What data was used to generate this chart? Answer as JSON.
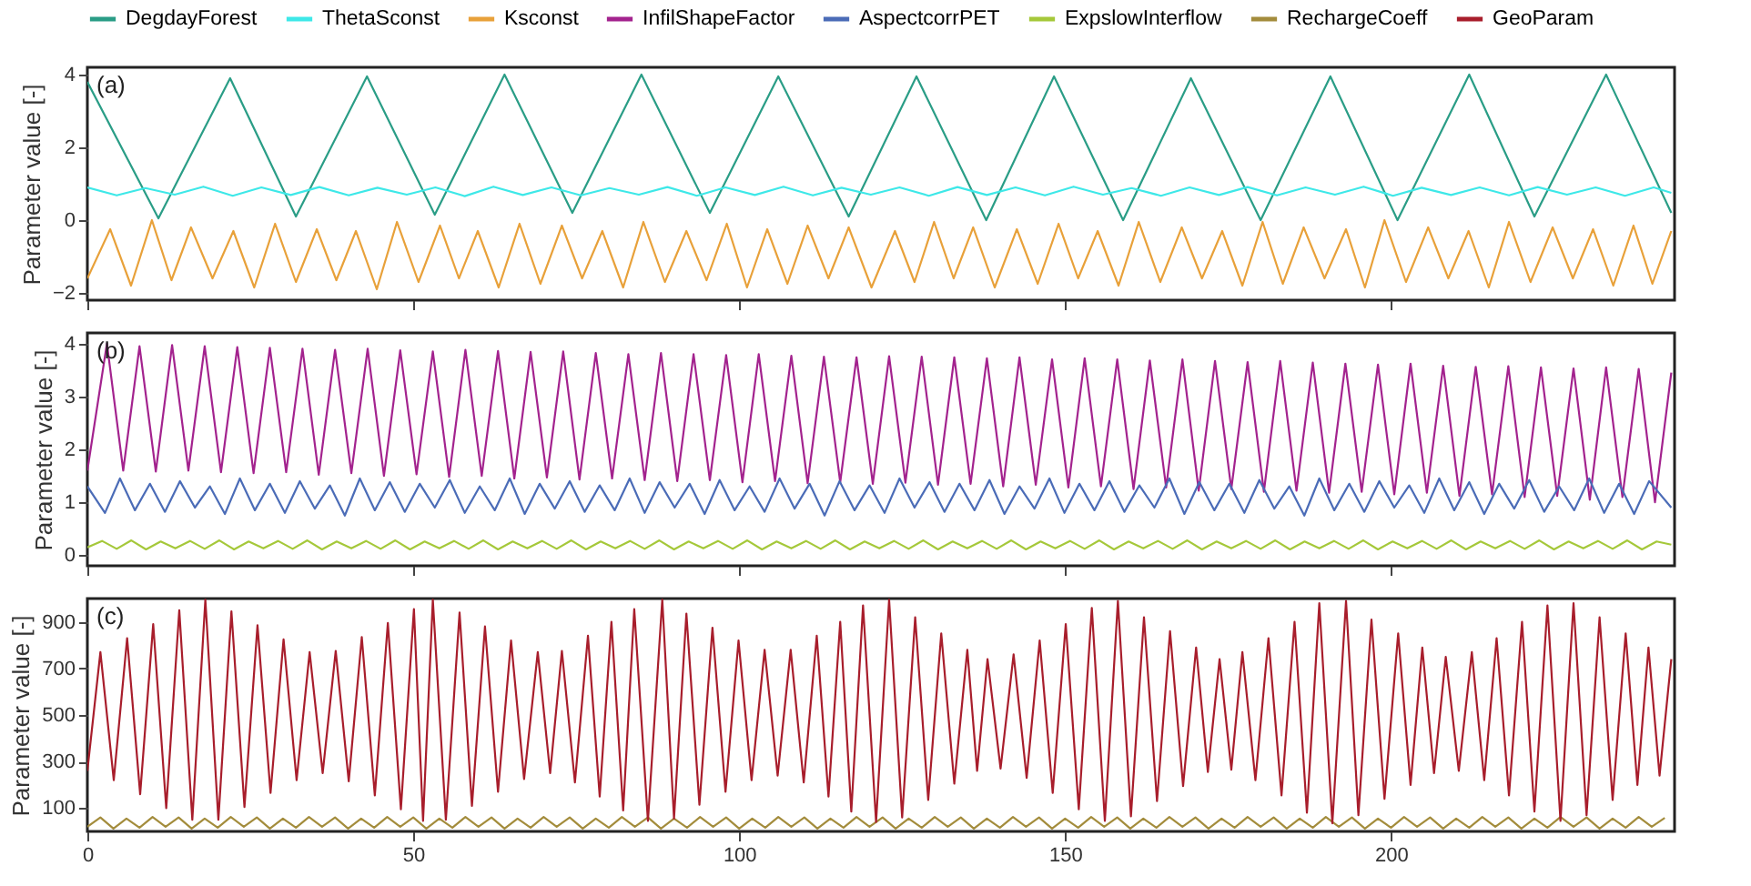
{
  "chart_data": [
    {
      "type": "line",
      "ylabel": "Parameter value [-]",
      "annotations": [
        "(a)"
      ],
      "xlim": [
        0,
        243.5
      ],
      "xticks": [
        0,
        50,
        100,
        150,
        200
      ],
      "ylim": [
        -2.2,
        4.2
      ],
      "yticks": [
        -2,
        0,
        2,
        4
      ],
      "tick_labels": "y",
      "legend": "top",
      "series": [
        {
          "name": "DegdayForest",
          "color": "#2a9d86",
          "x": [
            0,
            10.9,
            21.9,
            32,
            42.9,
            53.3,
            64,
            74.4,
            85,
            95.5,
            106,
            116.8,
            127.2,
            137.9,
            148.3,
            158.9,
            169.3,
            180,
            190.7,
            201,
            212,
            222,
            233,
            243
          ],
          "values": [
            3.8,
            0.05,
            3.9,
            0.1,
            3.95,
            0.15,
            4,
            0.2,
            4,
            0.2,
            3.95,
            0.1,
            3.95,
            0,
            3.95,
            0,
            3.9,
            0,
            3.95,
            0,
            4,
            0.1,
            4,
            0.2
          ]
        },
        {
          "name": "ThetaSconst",
          "color": "#3ee8e8",
          "x": [
            0,
            4.5,
            8.9,
            13.4,
            17.8,
            22.3,
            26.7,
            31.2,
            35.6,
            40.1,
            44.5,
            49,
            53.4,
            57.9,
            62.3,
            66.8,
            71.2,
            75.7,
            80.1,
            84.6,
            89,
            93.5,
            97.9,
            102.4,
            106.8,
            111.3,
            115.7,
            120.2,
            124.6,
            129.1,
            133.5,
            138,
            142.4,
            146.9,
            151.3,
            155.8,
            160.2,
            164.7,
            169.1,
            173.6,
            178,
            182.5,
            186.9,
            191.4,
            195.8,
            200.3,
            204.7,
            209.2,
            213.6,
            218.1,
            222.5,
            227,
            231.4,
            235.9,
            240.3,
            243
          ],
          "values": [
            0.9,
            0.68,
            0.88,
            0.7,
            0.92,
            0.67,
            0.9,
            0.69,
            0.91,
            0.68,
            0.89,
            0.7,
            0.9,
            0.66,
            0.92,
            0.69,
            0.9,
            0.68,
            0.88,
            0.7,
            0.91,
            0.67,
            0.9,
            0.69,
            0.92,
            0.68,
            0.89,
            0.7,
            0.9,
            0.67,
            0.91,
            0.69,
            0.9,
            0.68,
            0.92,
            0.7,
            0.88,
            0.67,
            0.9,
            0.69,
            0.91,
            0.68,
            0.9,
            0.7,
            0.92,
            0.67,
            0.89,
            0.69,
            0.9,
            0.68,
            0.91,
            0.7,
            0.9,
            0.67,
            0.9,
            0.75
          ]
        },
        {
          "name": "Ksconst",
          "color": "#e8a13a",
          "x": [
            0,
            3.5,
            6.7,
            9.9,
            12.9,
            15.9,
            19.2,
            22.4,
            25.6,
            28.8,
            32,
            35.2,
            38.2,
            41.2,
            44.4,
            47.5,
            50.8,
            54.1,
            57,
            59.9,
            63.1,
            66.3,
            69.5,
            72.8,
            75.9,
            79,
            82.2,
            85.3,
            88.6,
            91.9,
            95,
            98.1,
            101.2,
            104.3,
            107.4,
            110.5,
            113.7,
            116.8,
            120.3,
            123.9,
            126.9,
            129.9,
            132.9,
            135.9,
            139.2,
            142.6,
            145.8,
            149,
            152,
            155,
            158.2,
            161.3,
            164.6,
            167.9,
            171,
            174.1,
            177.2,
            180.3,
            183.4,
            186.6,
            189.8,
            193.1,
            196,
            199,
            202.3,
            205.7,
            208.8,
            211.9,
            215,
            218.1,
            221.4,
            224.8,
            227.9,
            231,
            234.1,
            237.2,
            240.1,
            243
          ],
          "values": [
            -1.6,
            -0.25,
            -1.8,
            0,
            -1.65,
            -0.2,
            -1.6,
            -0.3,
            -1.85,
            -0.1,
            -1.7,
            -0.25,
            -1.65,
            -0.3,
            -1.9,
            -0.05,
            -1.7,
            -0.15,
            -1.6,
            -0.3,
            -1.85,
            -0.1,
            -1.75,
            -0.15,
            -1.6,
            -0.3,
            -1.85,
            -0.05,
            -1.7,
            -0.3,
            -1.65,
            -0.1,
            -1.85,
            -0.25,
            -1.75,
            -0.15,
            -1.6,
            -0.2,
            -1.85,
            -0.3,
            -1.7,
            -0.05,
            -1.6,
            -0.2,
            -1.85,
            -0.25,
            -1.75,
            -0.1,
            -1.6,
            -0.3,
            -1.8,
            -0.05,
            -1.7,
            -0.2,
            -1.6,
            -0.3,
            -1.8,
            -0.05,
            -1.75,
            -0.2,
            -1.6,
            -0.25,
            -1.85,
            0,
            -1.7,
            -0.2,
            -1.6,
            -0.3,
            -1.85,
            -0.05,
            -1.7,
            -0.2,
            -1.6,
            -0.25,
            -1.8,
            -0.15,
            -1.75,
            -0.3
          ]
        }
      ]
    },
    {
      "type": "line",
      "ylabel": "Parameter value [-]",
      "annotations": [
        "(b)"
      ],
      "xlim": [
        0,
        243.5
      ],
      "xticks": [
        0,
        50,
        100,
        150,
        200
      ],
      "ylim": [
        -0.2,
        4.2
      ],
      "yticks": [
        0,
        1,
        2,
        3,
        4
      ],
      "tick_labels": "y",
      "legend": "top",
      "series": [
        {
          "name": "InfilShapeFactor",
          "color": "#a3238e",
          "x": [
            0,
            3,
            5.5,
            8,
            10.5,
            13,
            15.5,
            18,
            20.5,
            23,
            25.5,
            28,
            30.5,
            33,
            35.5,
            38,
            40.5,
            43,
            45.5,
            48,
            50.5,
            53,
            55.5,
            58,
            60.5,
            63,
            65.5,
            68,
            70.5,
            73,
            75.5,
            78,
            80.5,
            83,
            85.5,
            88,
            90.5,
            93,
            95.5,
            98,
            100.5,
            103,
            105.5,
            108,
            110.5,
            113,
            115.5,
            118,
            120.5,
            123,
            125.5,
            128,
            130.5,
            133,
            135.5,
            138,
            140.5,
            143,
            145.5,
            148,
            150.5,
            153,
            155.5,
            158,
            160.5,
            163,
            165.5,
            168,
            170.5,
            173,
            175.5,
            178,
            180.5,
            183,
            185.5,
            188,
            190.5,
            193,
            195.5,
            198,
            200.5,
            203,
            205.5,
            208,
            210.5,
            213,
            215.5,
            218,
            220.5,
            223,
            225.5,
            228,
            230.5,
            233,
            235.5,
            238,
            240.5,
            243
          ],
          "values": [
            1.6,
            4.0,
            1.6,
            3.95,
            1.58,
            3.97,
            1.6,
            3.95,
            1.57,
            3.93,
            1.55,
            3.92,
            1.57,
            3.9,
            1.52,
            3.88,
            1.55,
            3.9,
            1.5,
            3.87,
            1.53,
            3.85,
            1.48,
            3.88,
            1.5,
            3.86,
            1.45,
            3.84,
            1.47,
            3.85,
            1.43,
            3.82,
            1.45,
            3.8,
            1.42,
            3.82,
            1.4,
            3.8,
            1.42,
            3.78,
            1.38,
            3.8,
            1.4,
            3.77,
            1.36,
            3.75,
            1.38,
            3.74,
            1.35,
            3.76,
            1.37,
            3.75,
            1.33,
            3.74,
            1.35,
            3.72,
            1.3,
            3.74,
            1.33,
            3.7,
            1.28,
            3.72,
            1.3,
            3.7,
            1.25,
            3.68,
            1.28,
            3.7,
            1.22,
            3.67,
            1.25,
            3.65,
            1.2,
            3.67,
            1.22,
            3.64,
            1.18,
            3.62,
            1.2,
            3.6,
            1.15,
            3.62,
            1.18,
            3.58,
            1.12,
            3.56,
            1.15,
            3.57,
            1.1,
            3.55,
            1.12,
            3.53,
            1.05,
            3.55,
            1.1,
            3.52,
            1.0,
            3.45
          ]
        },
        {
          "name": "AspectcorrPET",
          "color": "#4b6cb7",
          "x": [
            0,
            2.7,
            5,
            7.3,
            9.6,
            11.9,
            14.2,
            16.5,
            18.8,
            21.1,
            23.4,
            25.7,
            28,
            30.3,
            32.6,
            34.9,
            37.2,
            39.5,
            41.8,
            44.1,
            46.4,
            48.7,
            51,
            53.3,
            55.6,
            57.9,
            60.2,
            62.5,
            64.8,
            67.1,
            69.4,
            71.7,
            74,
            76.3,
            78.6,
            80.9,
            83.2,
            85.5,
            87.8,
            90.1,
            92.4,
            94.7,
            97,
            99.3,
            101.6,
            103.9,
            106.2,
            108.5,
            110.8,
            113.1,
            115.4,
            117.7,
            120,
            122.3,
            124.6,
            126.9,
            129.2,
            131.5,
            133.8,
            136.1,
            138.4,
            140.7,
            143,
            145.3,
            147.6,
            149.9,
            152.2,
            154.5,
            156.8,
            159.1,
            161.4,
            163.7,
            166,
            168.3,
            170.6,
            172.9,
            175.2,
            177.5,
            179.8,
            182.1,
            184.4,
            186.7,
            189,
            191.3,
            193.6,
            195.9,
            198.2,
            200.5,
            202.8,
            205.1,
            207.4,
            209.7,
            212,
            214.3,
            216.6,
            218.9,
            221.2,
            223.5,
            225.8,
            228.1,
            230.4,
            232.7,
            235,
            237.3,
            239.6,
            243
          ],
          "values": [
            1.3,
            0.8,
            1.45,
            0.85,
            1.35,
            0.82,
            1.4,
            0.9,
            1.3,
            0.78,
            1.45,
            0.85,
            1.35,
            0.8,
            1.4,
            0.88,
            1.32,
            0.75,
            1.45,
            0.85,
            1.38,
            0.82,
            1.35,
            0.9,
            1.42,
            0.8,
            1.3,
            0.85,
            1.45,
            0.78,
            1.35,
            0.88,
            1.4,
            0.82,
            1.32,
            0.85,
            1.45,
            0.8,
            1.38,
            0.9,
            1.35,
            0.78,
            1.42,
            0.85,
            1.3,
            0.82,
            1.45,
            0.88,
            1.35,
            0.75,
            1.4,
            0.85,
            1.32,
            0.8,
            1.45,
            0.9,
            1.38,
            0.82,
            1.35,
            0.85,
            1.42,
            0.78,
            1.3,
            0.88,
            1.45,
            0.8,
            1.35,
            0.85,
            1.4,
            0.82,
            1.32,
            0.9,
            1.45,
            0.78,
            1.38,
            0.85,
            1.35,
            0.8,
            1.42,
            0.88,
            1.3,
            0.75,
            1.45,
            0.85,
            1.35,
            0.82,
            1.4,
            0.9,
            1.32,
            0.8,
            1.45,
            0.85,
            1.38,
            0.78,
            1.35,
            0.88,
            1.42,
            0.82,
            1.3,
            0.85,
            1.45,
            0.8,
            1.35,
            0.78,
            1.4,
            0.9
          ]
        },
        {
          "name": "ExpslowInterflow",
          "color": "#a5c83a",
          "x": [
            0,
            2.25,
            4.5,
            6.75,
            9,
            11.25,
            13.5,
            15.75,
            18,
            20.25,
            22.5,
            24.75,
            27,
            29.25,
            31.5,
            33.75,
            36,
            38.25,
            40.5,
            42.75,
            45,
            47.25,
            49.5,
            51.75,
            54,
            56.25,
            58.5,
            60.75,
            63,
            65.25,
            67.5,
            69.75,
            72,
            74.25,
            76.5,
            78.75,
            81,
            83.25,
            85.5,
            87.75,
            90,
            92.25,
            94.5,
            96.75,
            99,
            101.25,
            103.5,
            105.75,
            108,
            110.25,
            112.5,
            114.75,
            117,
            119.25,
            121.5,
            123.75,
            126,
            128.25,
            130.5,
            132.75,
            135,
            137.25,
            139.5,
            141.75,
            144,
            146.25,
            148.5,
            150.75,
            153,
            155.25,
            157.5,
            159.75,
            162,
            164.25,
            166.5,
            168.75,
            171,
            173.25,
            175.5,
            177.75,
            180,
            182.25,
            184.5,
            186.75,
            189,
            191.25,
            193.5,
            195.75,
            198,
            200.25,
            202.5,
            204.75,
            207,
            209.25,
            211.5,
            213.75,
            216,
            218.25,
            220.5,
            222.75,
            225,
            227.25,
            229.5,
            231.75,
            234,
            236.25,
            238.5,
            240.75,
            243
          ],
          "values": [
            0.15,
            0.27,
            0.12,
            0.28,
            0.11,
            0.26,
            0.13,
            0.27,
            0.12,
            0.28,
            0.11,
            0.26,
            0.13,
            0.27,
            0.12,
            0.28,
            0.11,
            0.26,
            0.13,
            0.27,
            0.12,
            0.28,
            0.11,
            0.26,
            0.13,
            0.27,
            0.12,
            0.28,
            0.11,
            0.26,
            0.13,
            0.27,
            0.12,
            0.28,
            0.11,
            0.26,
            0.13,
            0.27,
            0.12,
            0.28,
            0.11,
            0.26,
            0.13,
            0.27,
            0.12,
            0.28,
            0.11,
            0.26,
            0.13,
            0.27,
            0.12,
            0.28,
            0.11,
            0.26,
            0.13,
            0.27,
            0.12,
            0.28,
            0.11,
            0.26,
            0.13,
            0.27,
            0.12,
            0.28,
            0.11,
            0.26,
            0.13,
            0.27,
            0.12,
            0.28,
            0.11,
            0.26,
            0.13,
            0.27,
            0.12,
            0.28,
            0.11,
            0.26,
            0.13,
            0.27,
            0.12,
            0.28,
            0.11,
            0.26,
            0.13,
            0.27,
            0.12,
            0.28,
            0.11,
            0.26,
            0.13,
            0.27,
            0.12,
            0.28,
            0.11,
            0.26,
            0.13,
            0.27,
            0.12,
            0.28,
            0.11,
            0.26,
            0.13,
            0.27,
            0.12,
            0.28,
            0.11,
            0.26,
            0.2
          ]
        }
      ]
    },
    {
      "type": "line",
      "ylabel": "Parameter value [-]",
      "annotations": [
        "(c)"
      ],
      "xlim": [
        0,
        243.5
      ],
      "xticks": [
        0,
        50,
        100,
        150,
        200
      ],
      "ylim": [
        0,
        1000
      ],
      "yticks": [
        100,
        300,
        500,
        700,
        900
      ],
      "legend": "top",
      "series": [
        {
          "name": "RechargeCoeff",
          "color": "#a38c3c",
          "x": [
            0,
            2,
            4,
            6,
            8,
            10,
            12,
            14,
            16,
            18,
            20,
            22,
            24,
            26,
            28,
            30,
            32,
            34,
            36,
            38,
            40,
            42,
            44,
            46,
            48,
            50,
            52,
            54,
            56,
            58,
            60,
            62,
            64,
            66,
            68,
            70,
            72,
            74,
            76,
            78,
            80,
            82,
            84,
            86,
            88,
            90,
            92,
            94,
            96,
            98,
            100,
            102,
            104,
            106,
            108,
            110,
            112,
            114,
            116,
            118,
            120,
            122,
            124,
            126,
            128,
            130,
            132,
            134,
            136,
            138,
            140,
            142,
            144,
            146,
            148,
            150,
            152,
            154,
            156,
            158,
            160,
            162,
            164,
            166,
            168,
            170,
            172,
            174,
            176,
            178,
            180,
            182,
            184,
            186,
            188,
            190,
            192,
            194,
            196,
            198,
            200,
            202,
            204,
            206,
            208,
            210,
            212,
            214,
            216,
            218,
            220,
            222,
            224,
            226,
            228,
            230,
            232,
            234,
            236,
            238,
            240,
            242
          ],
          "values": [
            20,
            60,
            12,
            55,
            16,
            62,
            20,
            60,
            12,
            55,
            16,
            62,
            20,
            60,
            12,
            55,
            16,
            62,
            20,
            60,
            12,
            55,
            16,
            62,
            20,
            60,
            12,
            55,
            16,
            62,
            20,
            60,
            12,
            55,
            16,
            62,
            20,
            60,
            12,
            55,
            16,
            62,
            20,
            60,
            12,
            55,
            16,
            62,
            20,
            60,
            12,
            55,
            16,
            62,
            20,
            60,
            12,
            55,
            16,
            62,
            20,
            60,
            12,
            55,
            16,
            62,
            20,
            60,
            12,
            55,
            16,
            62,
            20,
            60,
            12,
            55,
            16,
            62,
            20,
            60,
            12,
            55,
            16,
            62,
            20,
            60,
            12,
            55,
            16,
            62,
            20,
            60,
            12,
            55,
            16,
            62,
            20,
            60,
            12,
            55,
            16,
            62,
            20,
            60,
            12,
            55,
            16,
            62,
            20,
            60,
            12,
            55,
            16,
            62,
            20,
            60,
            12,
            55,
            16,
            62,
            20,
            58
          ]
        },
        {
          "name": "GeoParam",
          "color": "#a81e2c",
          "x": [
            0,
            2.0,
            4.05,
            6.1,
            8.1,
            10.1,
            12.1,
            14.1,
            16.1,
            18.1,
            20.1,
            22.1,
            24.1,
            26.1,
            28.1,
            30.1,
            32.1,
            34.1,
            36.1,
            38.1,
            40.1,
            42.1,
            44.1,
            46.1,
            48.1,
            50.1,
            51.5,
            53,
            55,
            57.1,
            59,
            61,
            63,
            65,
            67,
            69.1,
            71,
            72.8,
            74.8,
            76.8,
            78.6,
            80.4,
            82.2,
            83.9,
            86,
            88.2,
            90,
            91.9,
            93.9,
            95.9,
            97.9,
            99.9,
            101.9,
            103.9,
            105.9,
            107.9,
            109.9,
            111.9,
            113.7,
            115.5,
            117.2,
            119,
            121,
            123,
            125,
            127,
            129,
            131,
            133,
            135,
            136.5,
            138.1,
            140.1,
            142.1,
            144.1,
            146.1,
            148.1,
            150.1,
            152.1,
            154.1,
            156.1,
            158.1,
            160.1,
            162.1,
            164.1,
            166.1,
            168.1,
            170.1,
            171.9,
            173.7,
            175.5,
            177.2,
            179.2,
            181.2,
            183.2,
            185.2,
            187.1,
            189,
            191,
            193.1,
            195,
            197,
            199,
            201.1,
            203,
            204.8,
            206.6,
            208.4,
            210.4,
            212.4,
            214.3,
            216.2,
            218.1,
            220.1,
            222,
            224,
            226,
            228,
            230,
            232,
            234,
            236,
            237.8,
            239.5,
            241.2,
            243
          ],
          "values": [
            260,
            770,
            220,
            830,
            160,
            890,
            100,
            950,
            50,
            995,
            50,
            945,
            105,
            885,
            165,
            825,
            220,
            770,
            250,
            775,
            215,
            835,
            155,
            895,
            95,
            955,
            45,
            995,
            50,
            940,
            110,
            880,
            170,
            820,
            225,
            770,
            250,
            775,
            210,
            840,
            150,
            900,
            90,
            955,
            45,
            995,
            55,
            935,
            115,
            875,
            170,
            820,
            220,
            780,
            240,
            780,
            210,
            840,
            150,
            900,
            85,
            970,
            40,
            995,
            60,
            920,
            135,
            850,
            205,
            780,
            260,
            740,
            270,
            760,
            230,
            820,
            165,
            890,
            95,
            960,
            45,
            990,
            65,
            920,
            130,
            860,
            195,
            790,
            255,
            740,
            265,
            770,
            220,
            830,
            155,
            900,
            80,
            980,
            35,
            990,
            70,
            910,
            140,
            850,
            200,
            790,
            250,
            750,
            260,
            770,
            220,
            830,
            155,
            900,
            85,
            970,
            45,
            980,
            70,
            920,
            135,
            850,
            200,
            790,
            240,
            740
          ]
        }
      ]
    }
  ]
}
